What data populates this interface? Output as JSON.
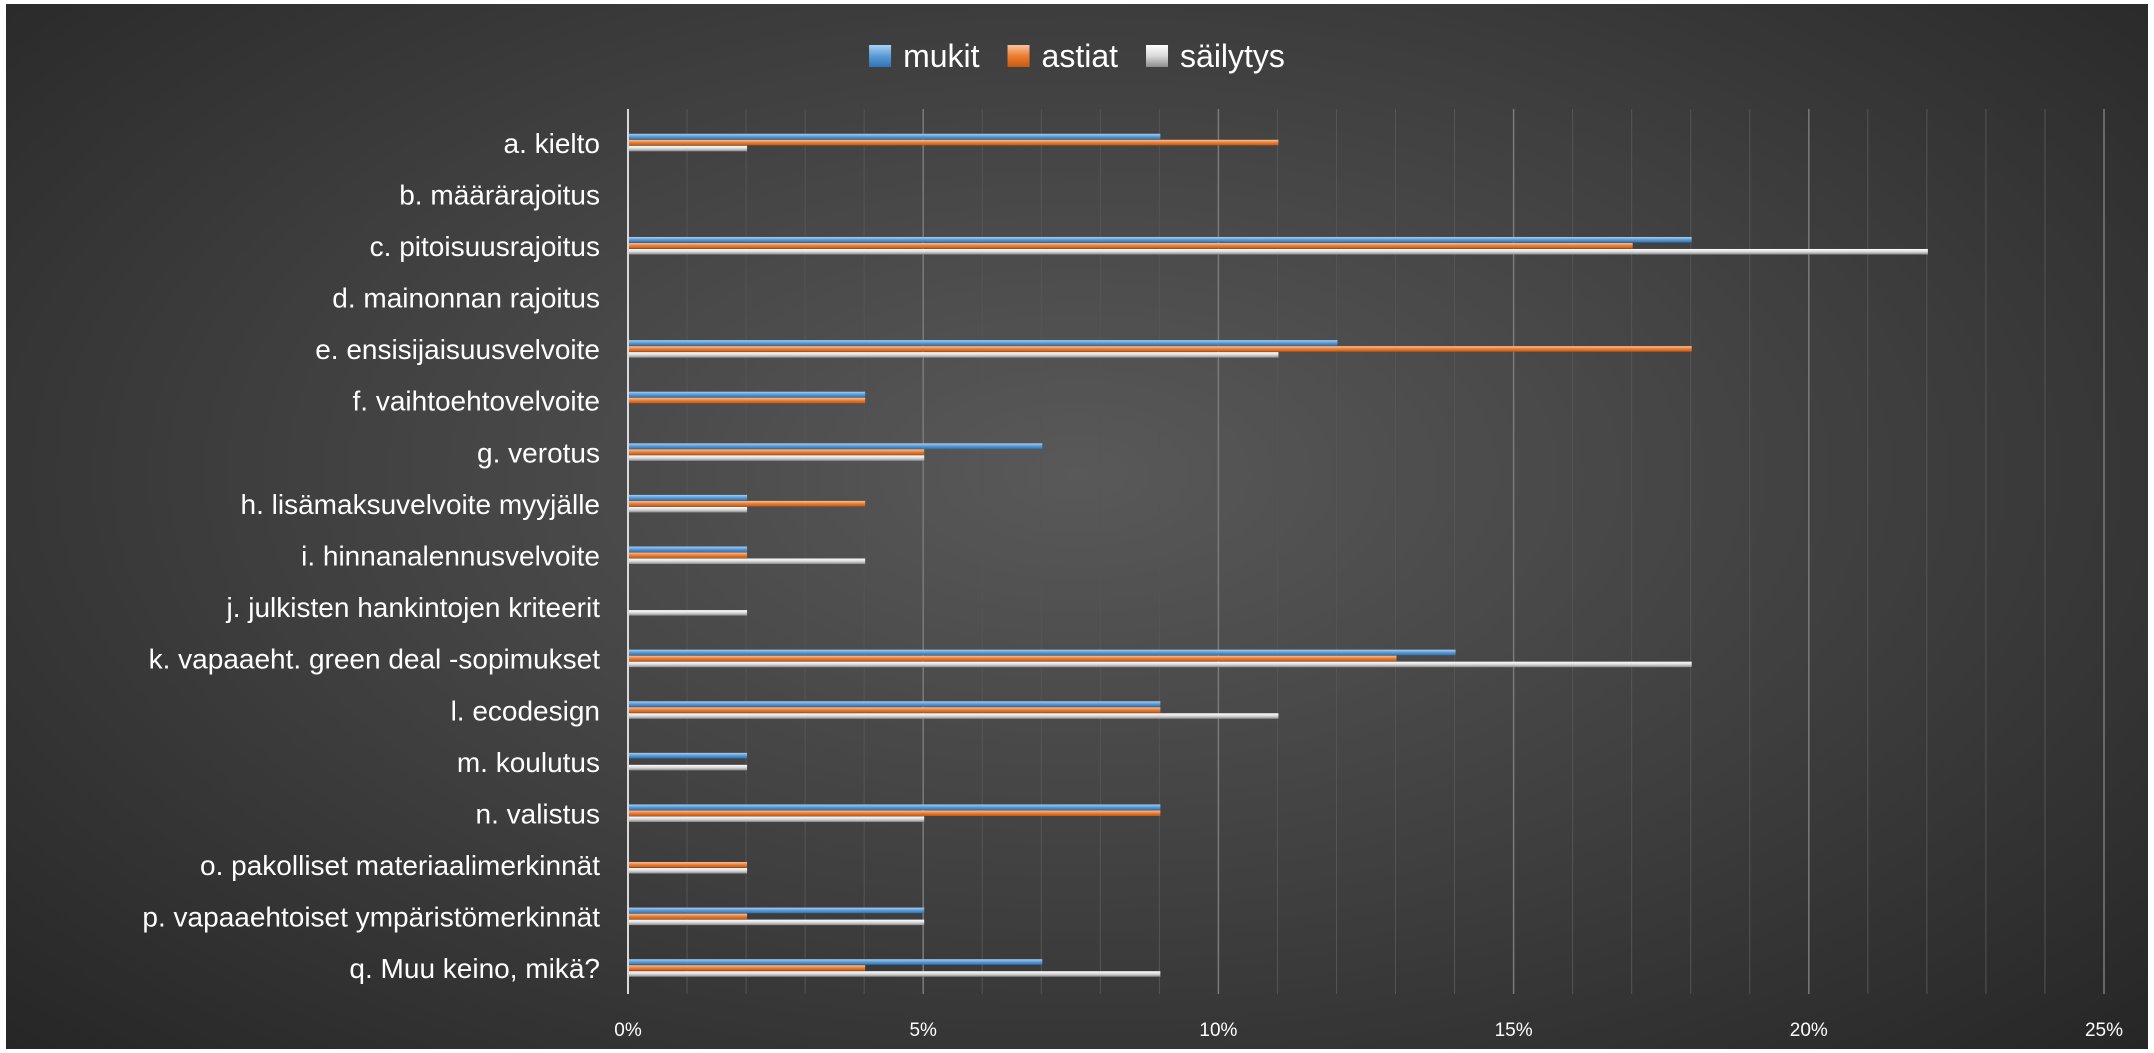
{
  "chart_data": {
    "type": "bar",
    "orientation": "horizontal",
    "categories": [
      "a. kielto",
      "b. määrärajoitus",
      "c. pitoisuusrajoitus",
      "d. mainonnan rajoitus",
      "e. ensisijaisuusvelvoite",
      "f. vaihtoehtovelvoite",
      "g. verotus",
      "h. lisämaksuvelvoite myyjälle",
      "i. hinnanalennusvelvoite",
      "j. julkisten hankintojen kriteerit",
      "k. vapaaeht. green deal -sopimukset",
      "l. ecodesign",
      "m. koulutus",
      "n. valistus",
      "o. pakolliset materiaalimerkinnät",
      "p. vapaaehtoiset ympäristömerkinnät",
      "q. Muu keino, mikä?"
    ],
    "series": [
      {
        "name": "mukit",
        "color": "#5b9bd5",
        "values": [
          9,
          0,
          18,
          0,
          12,
          4,
          7,
          2,
          2,
          0,
          14,
          9,
          2,
          9,
          0,
          5,
          7
        ]
      },
      {
        "name": "astiat",
        "color": "#ed7d31",
        "values": [
          11,
          0,
          17,
          0,
          18,
          4,
          5,
          4,
          2,
          0,
          13,
          9,
          0,
          9,
          2,
          2,
          4
        ]
      },
      {
        "name": "säilytys",
        "color": "#d9d9d9",
        "values": [
          2,
          0,
          22,
          0,
          11,
          0,
          5,
          2,
          4,
          2,
          18,
          11,
          2,
          5,
          2,
          5,
          9
        ]
      }
    ],
    "xlim": [
      0,
      25
    ],
    "xticks": [
      "0%",
      "5%",
      "10%",
      "15%",
      "20%",
      "25%"
    ],
    "x_tick_values": [
      0,
      5,
      10,
      15,
      20,
      25
    ],
    "unit": "%",
    "grid": true,
    "legend": "top-center",
    "title": "",
    "xlabel": "",
    "ylabel": ""
  }
}
